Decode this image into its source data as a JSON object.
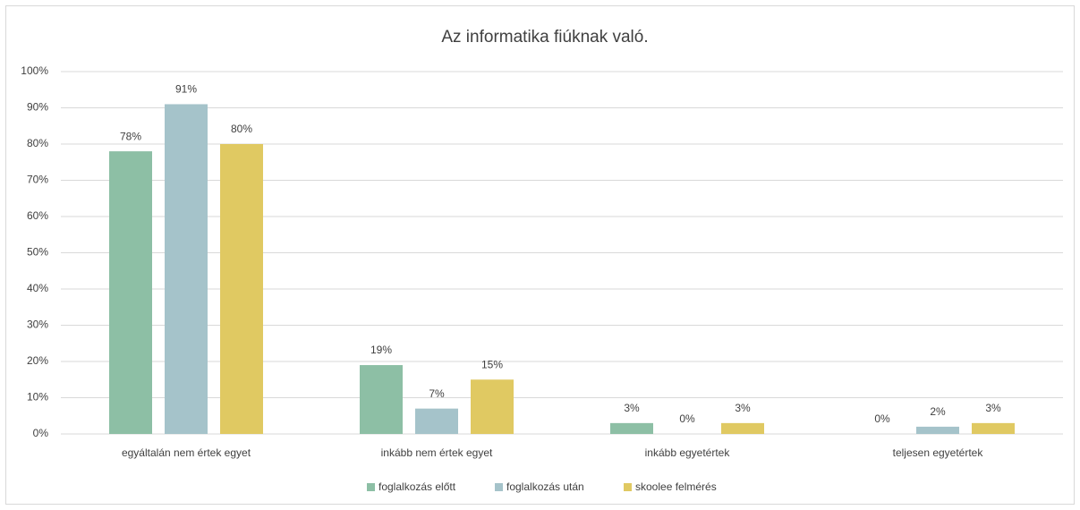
{
  "chart_data": {
    "type": "bar",
    "title": "Az informatika fiúknak való.",
    "categories": [
      "egyáltalán  nem értek egyet",
      "inkább nem értek egyet",
      "inkább egyetértek",
      "teljesen egyetértek"
    ],
    "series": [
      {
        "name": "foglalkozás előtt",
        "color": "#8dbfa5",
        "values": [
          78,
          19,
          3,
          0
        ],
        "value_labels": [
          "78%",
          "19%",
          "3%",
          "0%"
        ]
      },
      {
        "name": "foglalkozás után",
        "color": "#a5c3ca",
        "values": [
          91,
          7,
          0,
          2
        ],
        "value_labels": [
          "91%",
          "7%",
          "0%",
          "2%"
        ]
      },
      {
        "name": "skoolee felmérés",
        "color": "#e0c962",
        "values": [
          80,
          15,
          3,
          3
        ],
        "value_labels": [
          "80%",
          "15%",
          "3%",
          "3%"
        ]
      }
    ],
    "ylim": [
      0,
      100
    ],
    "yticks": [
      {
        "value": 0,
        "label": "0%"
      },
      {
        "value": 10,
        "label": "10%"
      },
      {
        "value": 20,
        "label": "20%"
      },
      {
        "value": 30,
        "label": "30%"
      },
      {
        "value": 40,
        "label": "40%"
      },
      {
        "value": 50,
        "label": "50%"
      },
      {
        "value": 60,
        "label": "60%"
      },
      {
        "value": 70,
        "label": "70%"
      },
      {
        "value": 80,
        "label": "80%"
      },
      {
        "value": 90,
        "label": "90%"
      },
      {
        "value": 100,
        "label": "100%"
      }
    ],
    "grid": true,
    "legend": "bottom"
  }
}
